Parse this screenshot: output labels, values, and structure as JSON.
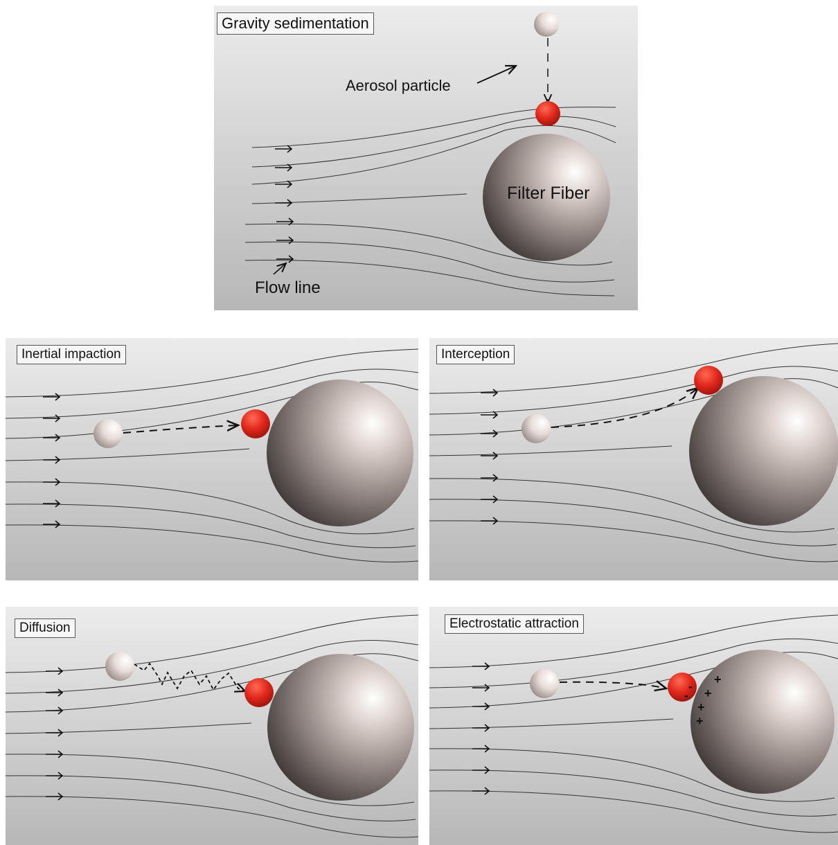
{
  "figure": {
    "panels": [
      {
        "id": "gravity",
        "title": "Gravity sedimentation"
      },
      {
        "id": "inertial",
        "title": "Inertial impaction"
      },
      {
        "id": "interception",
        "title": "Interception"
      },
      {
        "id": "diffusion",
        "title": "Diffusion"
      },
      {
        "id": "electrostatic",
        "title": "Electrostatic attraction"
      }
    ],
    "labels": {
      "aerosol_particle": "Aerosol particle",
      "filter_fiber": "Filter Fiber",
      "flow_line": "Flow line"
    },
    "charges": {
      "particle_sign": "-",
      "fiber_sign": "+"
    },
    "colors": {
      "background_top": "#e9e9e9",
      "background_bottom": "#b9b9b9",
      "fiber_highlight": "#ffffff",
      "fiber_mid": "#c9bcb7",
      "fiber_shadow": "#3b3534",
      "captured_particle": "#e0271b",
      "free_particle": "#efe5e1",
      "flow_line": "#333333"
    },
    "icons": [
      "fiber-sphere",
      "aerosol-particle-sphere",
      "captured-particle-sphere",
      "flow-arrow-icon"
    ]
  }
}
